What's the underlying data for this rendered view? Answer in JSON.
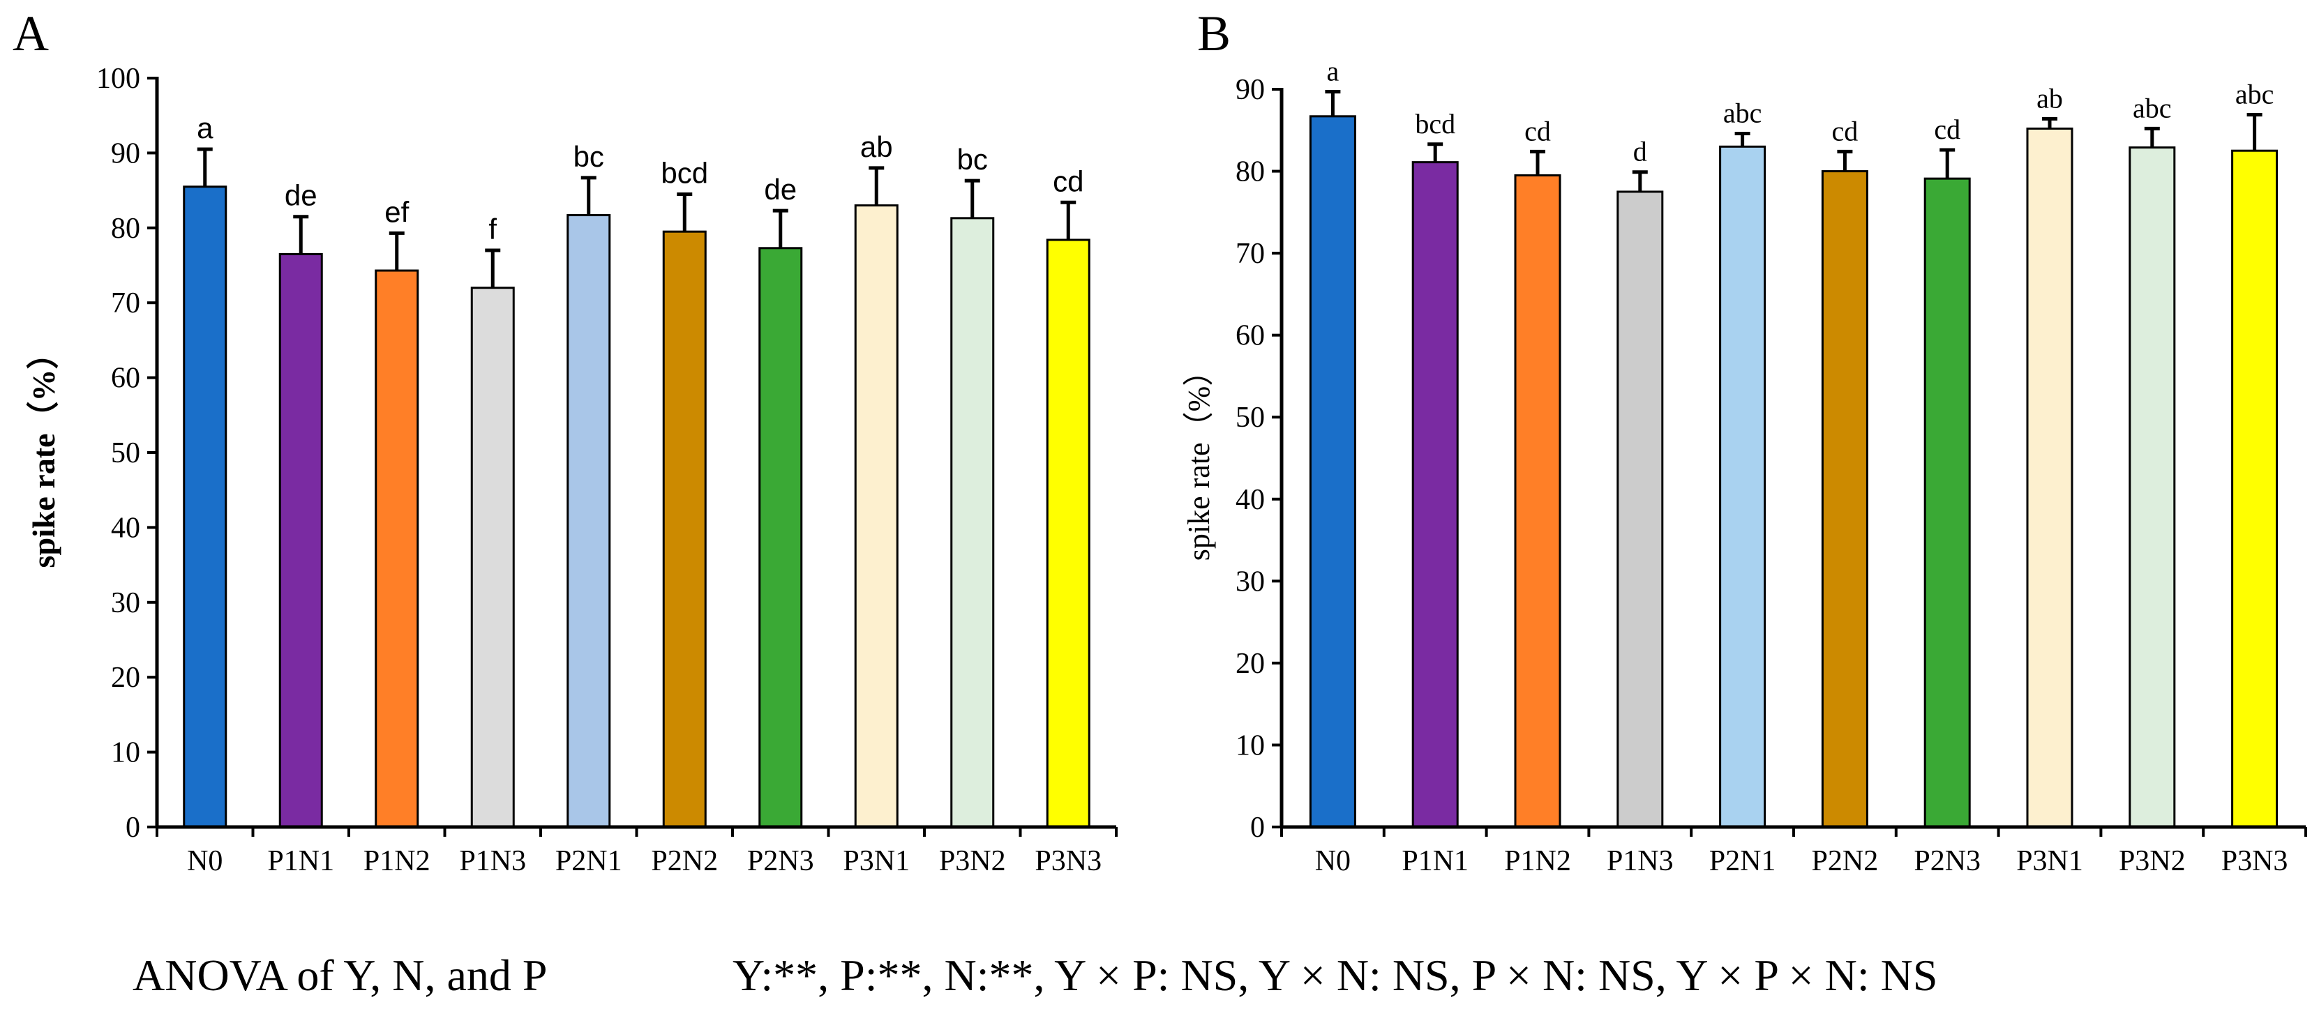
{
  "anova": {
    "label": "ANOVA of Y, N, and P",
    "result": "Y:**, P:**, N:**, Y × P: NS, Y × N: NS, P × N: NS, Y × P × N: NS"
  },
  "chart_data": [
    {
      "panel": "A",
      "type": "bar",
      "ylabel": "spike rate（%）",
      "xlabel": "",
      "ylim": [
        0,
        100
      ],
      "yticks": [
        0,
        10,
        20,
        30,
        40,
        50,
        60,
        70,
        80,
        90,
        100
      ],
      "categories": [
        "N0",
        "P1N1",
        "P1N2",
        "P1N3",
        "P2N1",
        "P2N2",
        "P2N3",
        "P3N1",
        "P3N2",
        "P3N3"
      ],
      "values": [
        85.5,
        76.5,
        74.3,
        72.0,
        81.7,
        79.5,
        77.3,
        83.0,
        81.3,
        78.4
      ],
      "errors": [
        5.0,
        5.0,
        5.0,
        5.0,
        5.0,
        5.0,
        5.0,
        5.0,
        5.0,
        5.0
      ],
      "letters": [
        "a",
        "de",
        "ef",
        "f",
        "bc",
        "bcd",
        "de",
        "ab",
        "bc",
        "cd"
      ],
      "colors": [
        "#1a6fc9",
        "#7a2ba2",
        "#ff7f27",
        "#dcdcdc",
        "#a9c6e8",
        "#cc8a00",
        "#3aa935",
        "#fdf0cf",
        "#ddeedd",
        "#ffff00"
      ]
    },
    {
      "panel": "B",
      "type": "bar",
      "ylabel": "spike rate（%）",
      "xlabel": "",
      "ylim": [
        0,
        90
      ],
      "yticks": [
        0,
        10,
        20,
        30,
        40,
        50,
        60,
        70,
        80,
        90
      ],
      "categories": [
        "N0",
        "P1N1",
        "P1N2",
        "P1N3",
        "P2N1",
        "P2N2",
        "P2N3",
        "P3N1",
        "P3N2",
        "P3N3"
      ],
      "values": [
        86.7,
        81.1,
        79.5,
        77.5,
        83.0,
        80.0,
        79.1,
        85.2,
        82.9,
        82.5
      ],
      "errors": [
        3.0,
        2.2,
        2.9,
        2.4,
        1.6,
        2.4,
        3.5,
        1.2,
        2.3,
        4.4
      ],
      "letters": [
        "a",
        "bcd",
        "cd",
        "d",
        "abc",
        "cd",
        "cd",
        "ab",
        "abc",
        "abc"
      ],
      "colors": [
        "#1a6fc9",
        "#7a2ba2",
        "#ff7f27",
        "#cccccc",
        "#a9d2f0",
        "#cc8a00",
        "#3aa935",
        "#fdf0cf",
        "#ddeedd",
        "#ffff00"
      ]
    }
  ]
}
